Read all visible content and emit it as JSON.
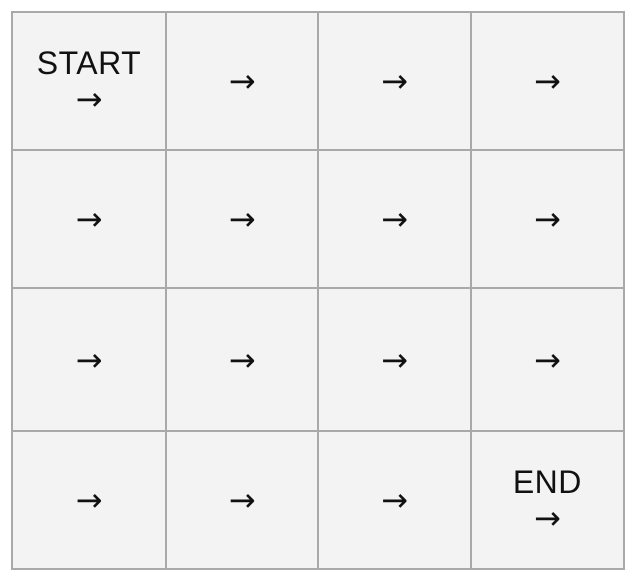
{
  "grid": {
    "rows": [
      [
        {
          "label": "START",
          "arrow": "→"
        },
        {
          "label": "",
          "arrow": "→"
        },
        {
          "label": "",
          "arrow": "→"
        },
        {
          "label": "",
          "arrow": "→"
        }
      ],
      [
        {
          "label": "",
          "arrow": "→"
        },
        {
          "label": "",
          "arrow": "→"
        },
        {
          "label": "",
          "arrow": "→"
        },
        {
          "label": "",
          "arrow": "→"
        }
      ],
      [
        {
          "label": "",
          "arrow": "→"
        },
        {
          "label": "",
          "arrow": "→"
        },
        {
          "label": "",
          "arrow": "→"
        },
        {
          "label": "",
          "arrow": "→"
        }
      ],
      [
        {
          "label": "",
          "arrow": "→"
        },
        {
          "label": "",
          "arrow": "→"
        },
        {
          "label": "",
          "arrow": "→"
        },
        {
          "label": "END",
          "arrow": "→"
        }
      ]
    ]
  },
  "colors": {
    "cell_background": "#f3f3f3",
    "border": "#a9a9a9",
    "text": "#111111"
  }
}
